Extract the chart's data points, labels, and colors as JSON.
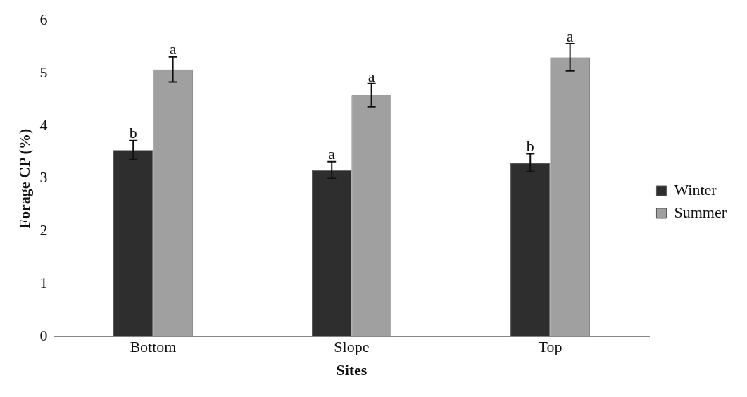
{
  "chart_data": {
    "type": "bar",
    "xlabel": "Sites",
    "ylabel": "Forage CP (%)",
    "categories": [
      "Bottom",
      "Slope",
      "Top"
    ],
    "series": [
      {
        "name": "Winter",
        "color": "#2e2e2e",
        "values": [
          3.54,
          3.16,
          3.3
        ],
        "errors": [
          0.18,
          0.16,
          0.17
        ]
      },
      {
        "name": "Summer",
        "color": "#a0a0a0",
        "values": [
          5.07,
          4.58,
          5.3
        ],
        "errors": [
          0.24,
          0.22,
          0.26
        ]
      }
    ],
    "ylim": [
      0,
      6
    ],
    "yticks": [
      0,
      1,
      2,
      3,
      4,
      5,
      6
    ],
    "grid": false,
    "legend": "right",
    "annotations": [
      {
        "text": "b",
        "x": "Bottom",
        "y": 3.54
      },
      {
        "text": "a",
        "x": "Bottom",
        "y": 5.07
      },
      {
        "text": "a",
        "x": "Slope",
        "y": 3.16
      },
      {
        "text": "a",
        "x": "Slope",
        "y": 4.58
      },
      {
        "text": "b",
        "x": "Top",
        "y": 3.3
      },
      {
        "text": "a",
        "x": "Top",
        "y": 5.3
      }
    ]
  }
}
